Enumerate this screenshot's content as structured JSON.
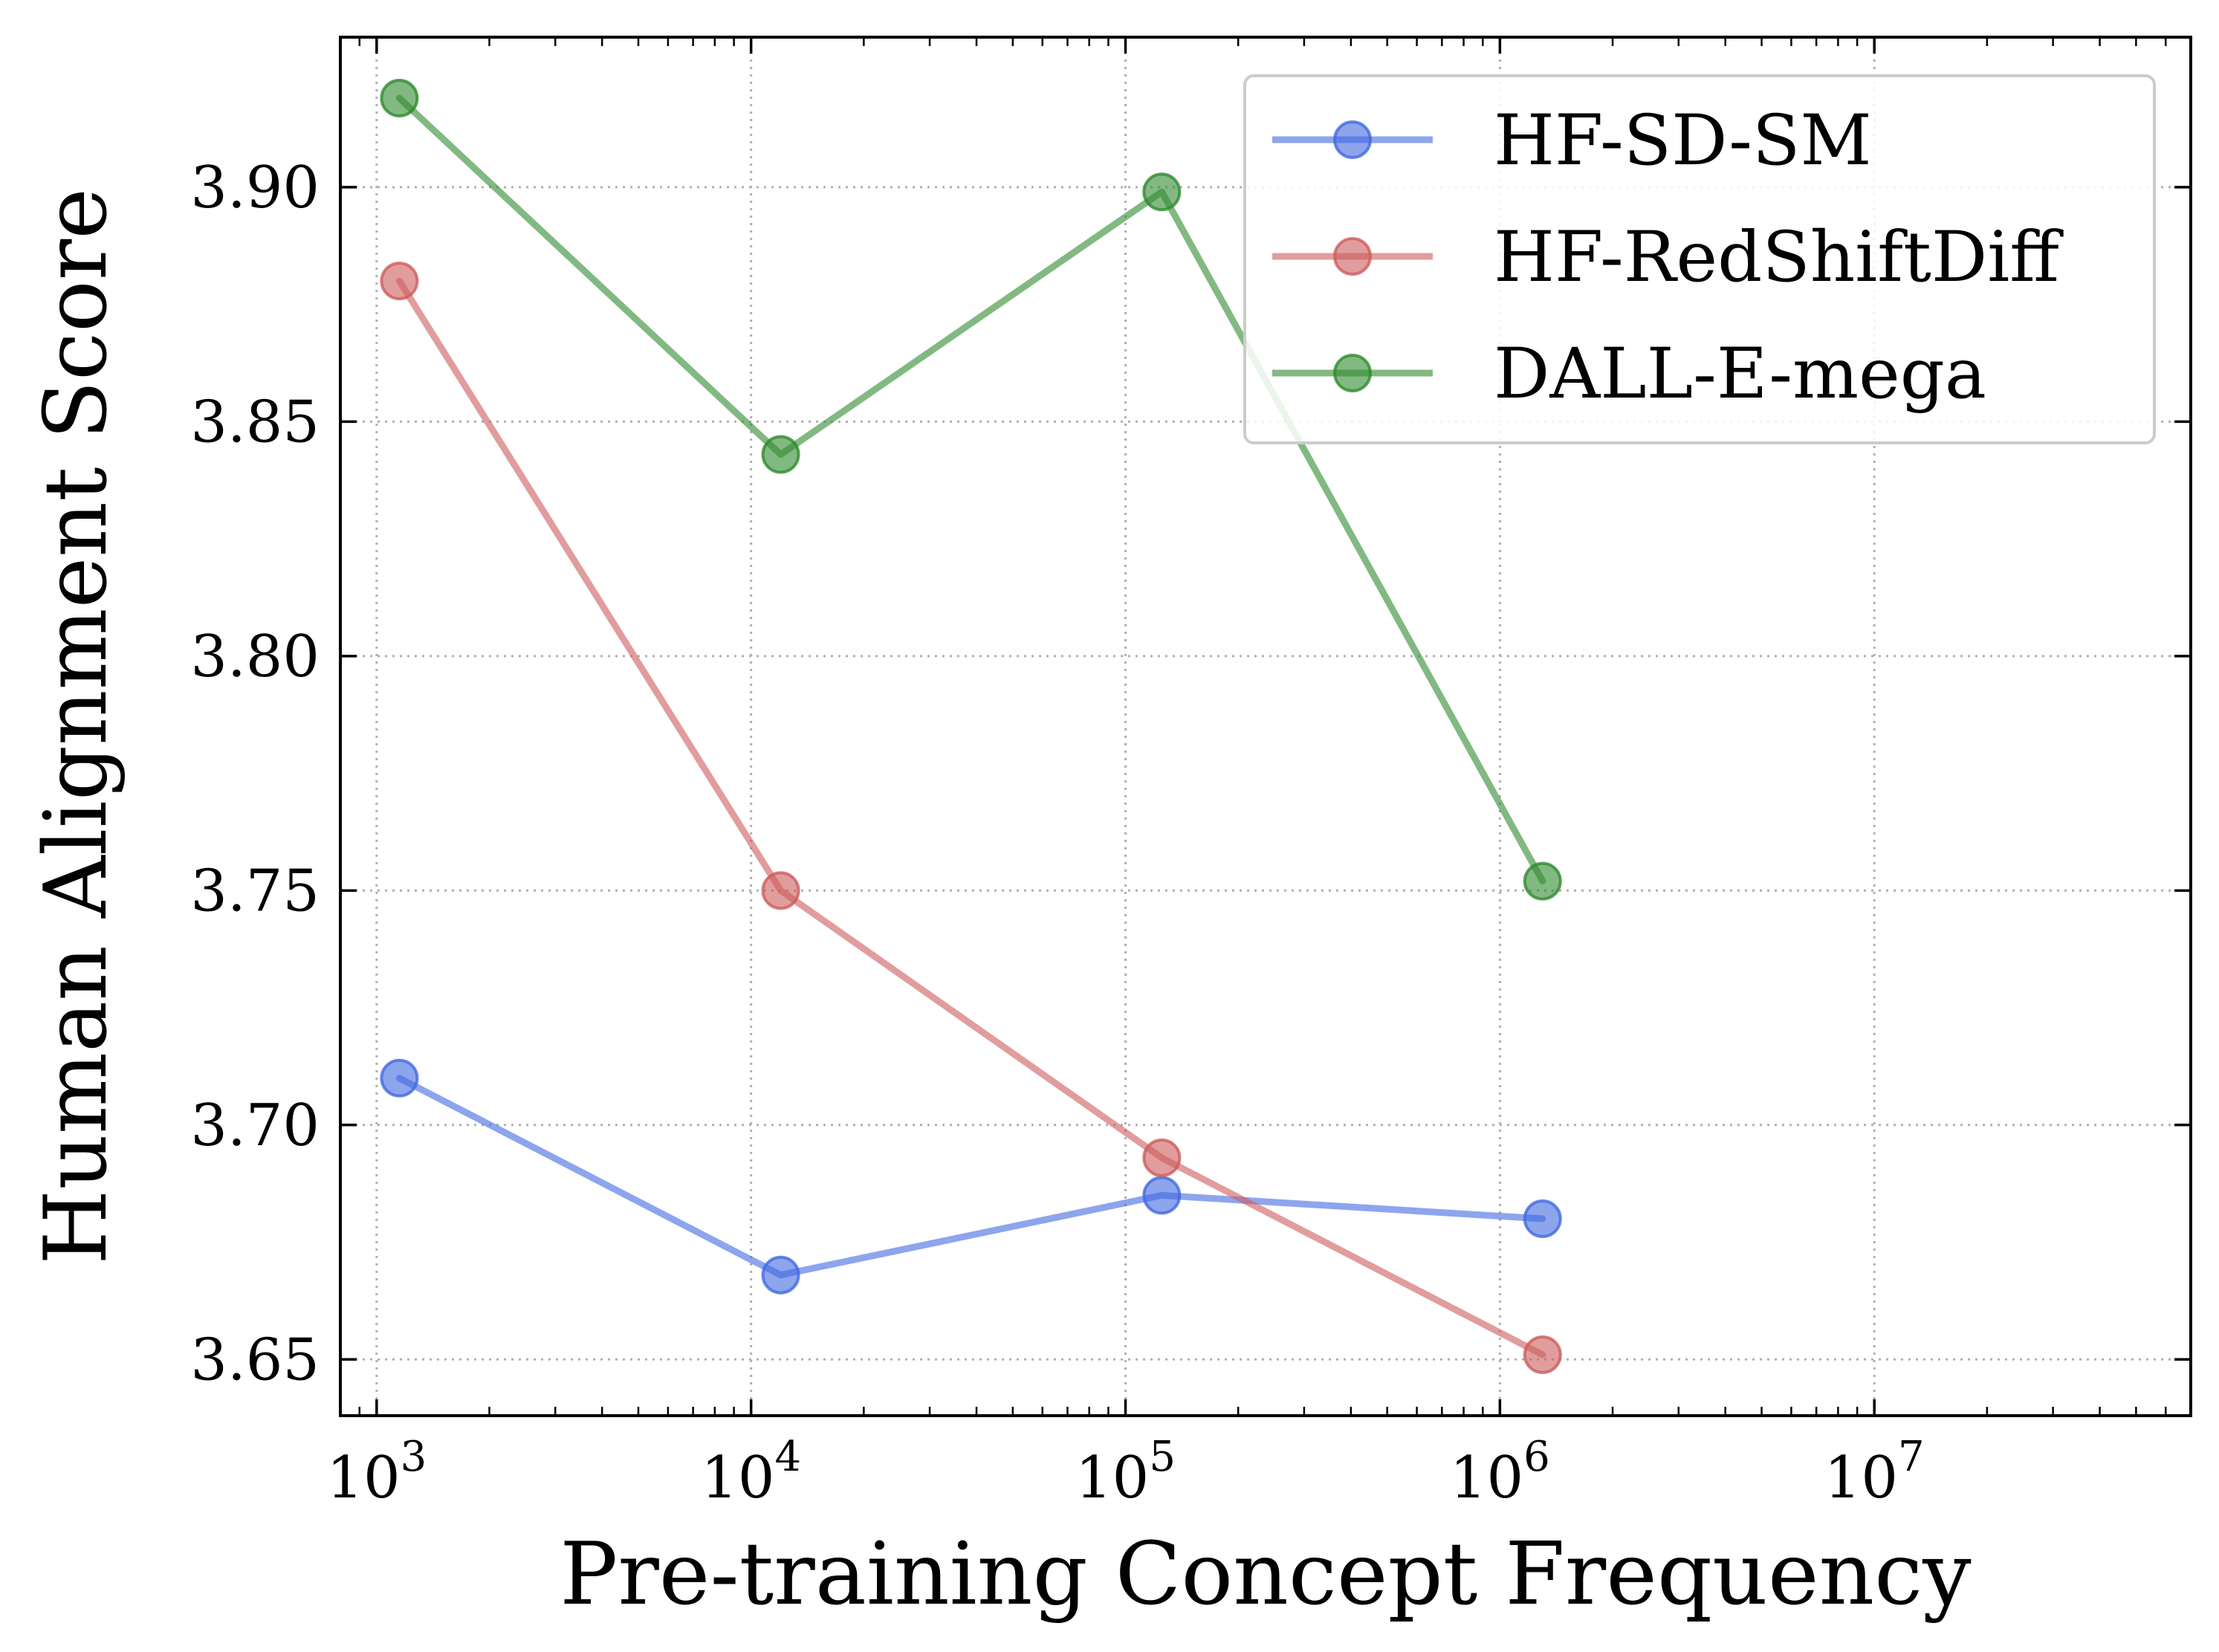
{
  "chart_data": {
    "type": "line",
    "xscale": "log",
    "x_ticks": [
      {
        "value": 1000,
        "base": "10",
        "exp": "3"
      },
      {
        "value": 10000,
        "base": "10",
        "exp": "4"
      },
      {
        "value": 100000,
        "base": "10",
        "exp": "5"
      },
      {
        "value": 1000000,
        "base": "10",
        "exp": "6"
      },
      {
        "value": 10000000,
        "base": "10",
        "exp": "7"
      }
    ],
    "y_ticks": [
      {
        "value": 3.65,
        "label": "3.65"
      },
      {
        "value": 3.7,
        "label": "3.70"
      },
      {
        "value": 3.75,
        "label": "3.75"
      },
      {
        "value": 3.8,
        "label": "3.80"
      },
      {
        "value": 3.85,
        "label": "3.85"
      },
      {
        "value": 3.9,
        "label": "3.90"
      }
    ],
    "xlim": [
      800,
      70000000
    ],
    "ylim": [
      3.638,
      3.932
    ],
    "xlabel": "Pre-training Concept Frequency",
    "ylabel": "Human Alignment Score",
    "title": "",
    "grid": true,
    "legend_position": "upper-right",
    "x": [
      1150,
      12000,
      125000,
      1300000
    ],
    "series": [
      {
        "name": "HF-SD-SM",
        "color": "#4169e1",
        "values": [
          3.71,
          3.668,
          3.685,
          3.68
        ]
      },
      {
        "name": "HF-RedShiftDiff",
        "color": "#cd5c5c",
        "values": [
          3.88,
          3.75,
          3.693,
          3.651
        ]
      },
      {
        "name": "DALL-E-mega",
        "color": "#2e8b2e",
        "values": [
          3.919,
          3.843,
          3.899,
          3.752
        ]
      }
    ]
  }
}
